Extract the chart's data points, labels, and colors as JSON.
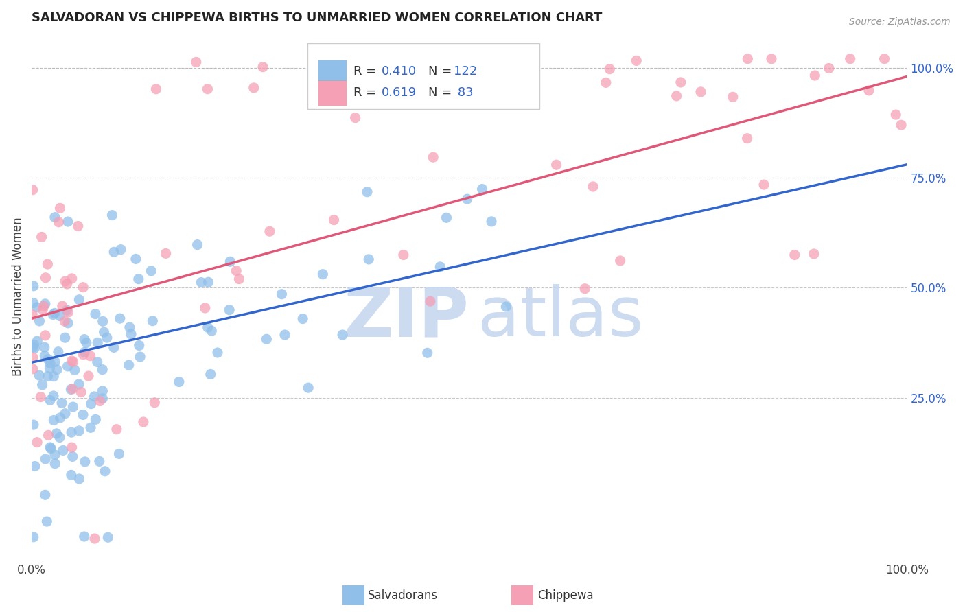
{
  "title": "SALVADORAN VS CHIPPEWA BIRTHS TO UNMARRIED WOMEN CORRELATION CHART",
  "source": "Source: ZipAtlas.com",
  "ylabel": "Births to Unmarried Women",
  "right_yticks": [
    "100.0%",
    "75.0%",
    "50.0%",
    "25.0%"
  ],
  "right_ytick_vals": [
    1.0,
    0.75,
    0.5,
    0.25
  ],
  "legend_blue_R": "0.410",
  "legend_blue_N": "122",
  "legend_pink_R": "0.619",
  "legend_pink_N": "83",
  "blue_color": "#90C0EA",
  "pink_color": "#F5A0B5",
  "blue_line_color": "#3366CC",
  "pink_line_color": "#E05878",
  "watermark_color": "#C8D8F0",
  "background_color": "#FFFFFF",
  "grid_color": "#BBBBBB",
  "title_color": "#222222",
  "blue_line_x0": 0.0,
  "blue_line_y0": 0.33,
  "blue_line_x1": 1.0,
  "blue_line_y1": 0.78,
  "pink_line_x0": 0.0,
  "pink_line_y0": 0.43,
  "pink_line_x1": 1.0,
  "pink_line_y1": 0.98,
  "ylim_min": -0.12,
  "ylim_max": 1.08,
  "xlim_min": 0.0,
  "xlim_max": 1.0
}
